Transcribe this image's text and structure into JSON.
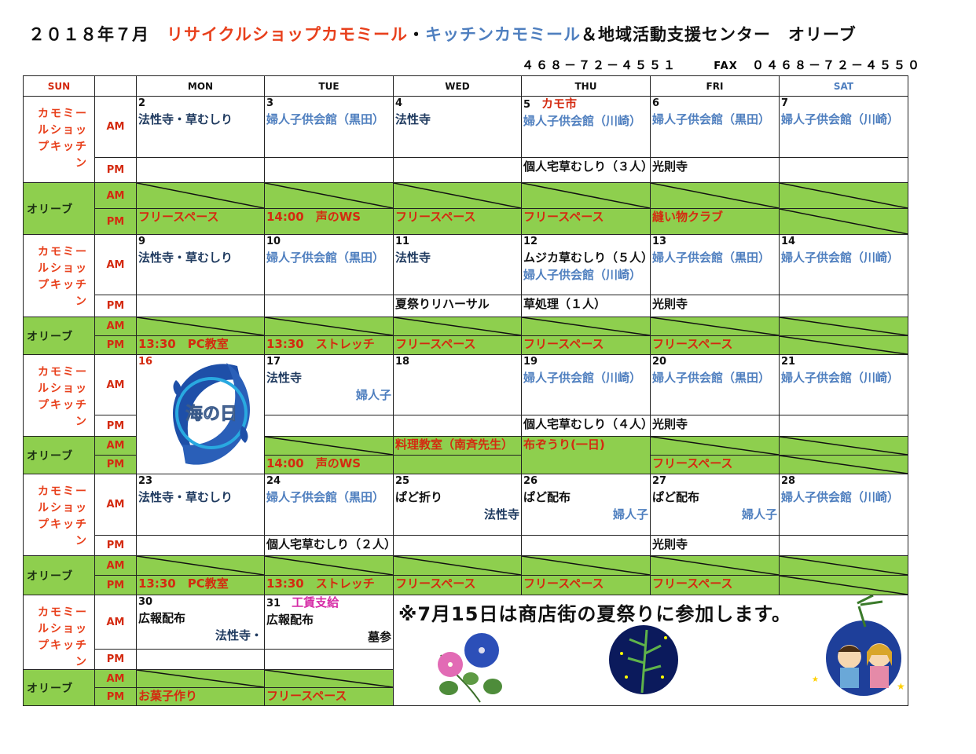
{
  "title": {
    "parts": [
      {
        "t": "２０１８年７月　",
        "c": "black"
      },
      {
        "t": "リサイクルショップカモミール",
        "c": "red"
      },
      {
        "t": "・",
        "c": "black"
      },
      {
        "t": "キッチンカモミール",
        "c": "blue"
      },
      {
        "t": "＆地域活動支援センター　オリーブ",
        "c": "black"
      }
    ]
  },
  "phone": {
    "tel": "４６８－７２－４５５１",
    "fax_label": "FAX",
    "fax": "０４６８－７２－４５５０"
  },
  "colors": {
    "black": "#111111",
    "red": "#e8401c",
    "navy": "#1f3a5f",
    "blue": "#4f7fbf",
    "ored": "#d42a10",
    "magenta": "#d62ca6",
    "green": "#8ecf4e"
  },
  "header": {
    "days": [
      "SUN",
      "",
      "MON",
      "TUE",
      "WED",
      "THU",
      "FRI",
      "SAT"
    ],
    "day_colors": [
      "ored",
      "black",
      "black",
      "black",
      "black",
      "black",
      "black",
      "blue"
    ]
  },
  "group_label": "カモミールショップキッチン",
  "olive_label": "オリーブ",
  "am": "AM",
  "pm": "PM",
  "weeks": [
    {
      "days": [
        {
          "date": "2",
          "am": [
            {
              "t": "法性寺・草むしり",
              "c": "navy"
            }
          ],
          "pm": [],
          "oam": {
            "closed": true
          },
          "opm": {
            "segs": [
              {
                "t": "フリースペース",
                "c": "ored"
              }
            ]
          }
        },
        {
          "date": "3",
          "am": [
            {
              "t": "婦人子供会館（黒田）",
              "c": "blue"
            }
          ],
          "pm": [],
          "oam": {
            "closed": true
          },
          "opm": {
            "segs": [
              {
                "t": "14:00　声のWS",
                "c": "ored"
              }
            ]
          }
        },
        {
          "date": "4",
          "am": [
            {
              "t": "法性寺",
              "c": "navy"
            }
          ],
          "pm": [],
          "oam": {
            "closed": true
          },
          "opm": {
            "segs": [
              {
                "t": "フリースペース",
                "c": "ored"
              }
            ]
          }
        },
        {
          "date": "5",
          "note": "カモ市",
          "note_c": "ored",
          "am": [
            {
              "t": "婦人子供会館（川崎）",
              "c": "blue"
            }
          ],
          "pm": [
            {
              "t": "個人宅草むしり（３人）",
              "c": "black"
            }
          ],
          "oam": {
            "closed": true
          },
          "opm": {
            "segs": [
              {
                "t": "フリースペース",
                "c": "ored"
              }
            ]
          }
        },
        {
          "date": "6",
          "am": [
            {
              "t": "婦人子供会館（黒田）",
              "c": "blue"
            }
          ],
          "pm": [
            {
              "t": "光則寺",
              "c": "black"
            }
          ],
          "oam": {
            "closed": true
          },
          "opm": {
            "segs": [
              {
                "t": "縫い物クラブ",
                "c": "ored"
              }
            ]
          }
        },
        {
          "date": "7",
          "am": [
            {
              "t": "婦人子供会館（川崎）",
              "c": "blue"
            }
          ],
          "pm": [],
          "oam": {
            "closed": true
          },
          "opm": {
            "closed": true
          }
        }
      ]
    },
    {
      "days": [
        {
          "date": "9",
          "am": [
            {
              "t": "法性寺・草むしり",
              "c": "navy"
            }
          ],
          "pm": [],
          "oam": {
            "closed": true
          },
          "opm": {
            "segs": [
              {
                "t": "13:30　PC教室",
                "c": "ored"
              }
            ]
          }
        },
        {
          "date": "10",
          "am": [
            {
              "t": "婦人子供会館（黒田）",
              "c": "blue"
            }
          ],
          "pm": [],
          "oam": {
            "closed": true
          },
          "opm": {
            "segs": [
              {
                "t": "13:30　ストレッチ",
                "c": "ored"
              }
            ]
          }
        },
        {
          "date": "11",
          "am": [
            {
              "t": "法性寺",
              "c": "navy"
            }
          ],
          "pm": [
            {
              "t": "夏祭りリハーサル",
              "c": "black"
            }
          ],
          "oam": {
            "closed": true
          },
          "opm": {
            "segs": [
              {
                "t": "フリースペース",
                "c": "ored"
              }
            ]
          }
        },
        {
          "date": "12",
          "am": [
            {
              "t": "ムジカ草むしり（５人）",
              "c": "black",
              "inline": true
            },
            {
              "t": "　　　婦人子供会館（川崎）",
              "c": "blue",
              "inline": true
            }
          ],
          "pm": [
            {
              "t": "草処理（１人）",
              "c": "black"
            }
          ],
          "oam": {
            "closed": true
          },
          "opm": {
            "segs": [
              {
                "t": "フリースペース",
                "c": "ored"
              }
            ]
          }
        },
        {
          "date": "13",
          "am": [
            {
              "t": "婦人子供会館（黒田）",
              "c": "blue"
            }
          ],
          "pm": [
            {
              "t": "光則寺",
              "c": "black"
            }
          ],
          "oam": {
            "closed": true
          },
          "opm": {
            "segs": [
              {
                "t": "フリースペース",
                "c": "ored"
              }
            ]
          }
        },
        {
          "date": "14",
          "am": [
            {
              "t": "婦人子供会館（川崎）",
              "c": "blue"
            }
          ],
          "pm": [],
          "oam": {
            "closed": true
          },
          "opm": {
            "closed": true
          }
        }
      ]
    },
    {
      "days": [
        {
          "date": "16",
          "date_c": "ored",
          "holiday": "海の日"
        },
        {
          "date": "17",
          "am": [
            {
              "t": "法性寺",
              "c": "navy"
            },
            {
              "t": "婦人子",
              "c": "blue",
              "right": true
            }
          ],
          "pm": [],
          "oam": {
            "closed": true
          },
          "opm": {
            "segs": [
              {
                "t": "14:00　声のWS",
                "c": "ored"
              }
            ]
          }
        },
        {
          "date": "18",
          "am": [],
          "pm": [],
          "oam": {
            "segs": [
              {
                "t": "料理教室（南斉先生）",
                "c": "ored"
              }
            ]
          },
          "opm": {
            "segs": []
          }
        },
        {
          "date": "19",
          "am": [
            {
              "t": "婦人子供会館（川崎）",
              "c": "blue"
            }
          ],
          "pm": [
            {
              "t": "個人宅草むしり（４人）",
              "c": "black"
            }
          ],
          "omerged": [
            {
              "t": "布ぞうり(一日)",
              "c": "ored"
            }
          ]
        },
        {
          "date": "20",
          "am": [
            {
              "t": "婦人子供会館（黒田）",
              "c": "blue"
            }
          ],
          "pm": [
            {
              "t": "光則寺",
              "c": "black"
            }
          ],
          "oam": {
            "closed": true
          },
          "opm": {
            "segs": [
              {
                "t": "フリースペース",
                "c": "ored"
              }
            ]
          }
        },
        {
          "date": "21",
          "am": [
            {
              "t": "婦人子供会館（川崎）",
              "c": "blue"
            }
          ],
          "pm": [],
          "oam": {
            "closed": true
          },
          "opm": {
            "closed": true
          }
        }
      ]
    },
    {
      "days": [
        {
          "date": "23",
          "am": [
            {
              "t": "法性寺・草むしり",
              "c": "navy"
            }
          ],
          "pm": [],
          "oam": {
            "closed": true
          },
          "opm": {
            "segs": [
              {
                "t": "13:30　PC教室",
                "c": "ored"
              }
            ]
          }
        },
        {
          "date": "24",
          "am": [
            {
              "t": "婦人子供会館（黒田）",
              "c": "blue"
            }
          ],
          "pm": [
            {
              "t": "個人宅草むしり（２人）",
              "c": "black"
            }
          ],
          "oam": {
            "closed": true
          },
          "opm": {
            "segs": [
              {
                "t": "13:30　ストレッチ",
                "c": "ored"
              }
            ]
          }
        },
        {
          "date": "25",
          "am": [
            {
              "t": "ぱど折り",
              "c": "black"
            },
            {
              "t": "法性寺",
              "c": "navy",
              "right": true
            }
          ],
          "pm": [],
          "oam": {
            "closed": true
          },
          "opm": {
            "segs": [
              {
                "t": "フリースペース",
                "c": "ored"
              }
            ]
          }
        },
        {
          "date": "26",
          "am": [
            {
              "t": "ぱど配布",
              "c": "black"
            },
            {
              "t": "婦人子",
              "c": "blue",
              "right": true
            }
          ],
          "pm": [],
          "oam": {
            "closed": true
          },
          "opm": {
            "segs": [
              {
                "t": "フリースペース",
                "c": "ored"
              }
            ]
          }
        },
        {
          "date": "27",
          "am": [
            {
              "t": "ぱど配布",
              "c": "black"
            },
            {
              "t": "婦人子",
              "c": "blue",
              "right": true
            }
          ],
          "pm": [
            {
              "t": "光則寺",
              "c": "black"
            }
          ],
          "oam": {
            "closed": true
          },
          "opm": {
            "segs": [
              {
                "t": "フリースペース",
                "c": "ored"
              }
            ]
          }
        },
        {
          "date": "28",
          "am": [
            {
              "t": "婦人子供会館（川崎）",
              "c": "blue"
            }
          ],
          "pm": [],
          "oam": {
            "closed": true
          },
          "opm": {
            "closed": true
          }
        }
      ]
    },
    {
      "days": [
        {
          "date": "30",
          "am": [
            {
              "t": "広報配布",
              "c": "black"
            },
            {
              "t": "法性寺・",
              "c": "navy",
              "right": true
            }
          ],
          "pm": [],
          "oam": {
            "closed": true
          },
          "opm": {
            "segs": [
              {
                "t": "お菓子作り",
                "c": "ored"
              }
            ]
          }
        },
        {
          "date": "31",
          "note": "工賃支給",
          "note_c": "magenta",
          "am": [
            {
              "t": "広報配布",
              "c": "black"
            },
            {
              "t": "墓参",
              "c": "black",
              "right": true
            }
          ],
          "pm": [],
          "oam": {
            "closed": true
          },
          "opm": {
            "segs": [
              {
                "t": "フリースペース",
                "c": "ored"
              }
            ]
          }
        }
      ],
      "notice": "※7月15日は商店街の夏祭りに参加します。"
    }
  ]
}
